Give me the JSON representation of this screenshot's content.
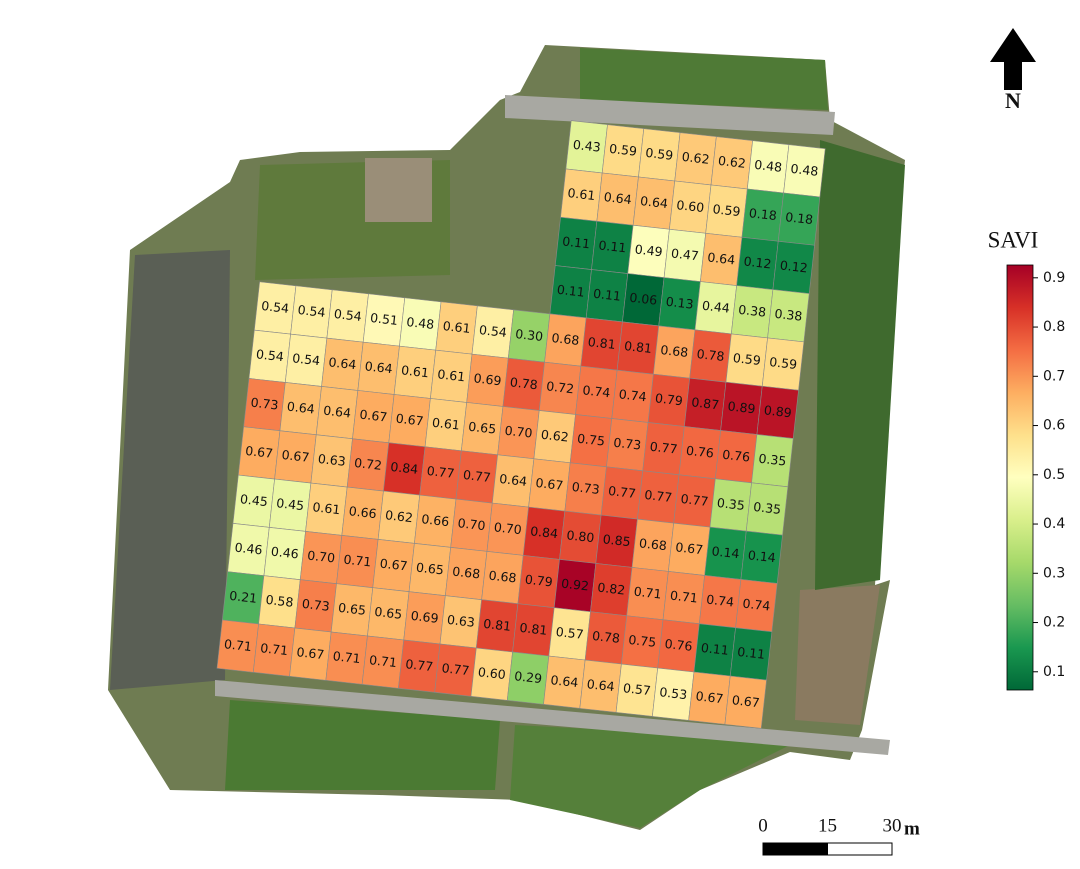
{
  "map": {
    "legend_title": "SAVI",
    "north_label": "N",
    "colormap": "RdYlGn_r",
    "clim": [
      0.063,
      0.926
    ],
    "colorbar_ticks": [
      0.1,
      0.2,
      0.3,
      0.4,
      0.5,
      0.6,
      0.7,
      0.8,
      0.9
    ],
    "scale_bar": {
      "ticks": [
        0,
        15,
        30
      ],
      "unit": "m"
    },
    "north_block": {
      "values": [
        [
          0.43,
          0.59,
          0.59,
          0.62,
          0.62,
          0.48,
          0.48
        ],
        [
          0.61,
          0.64,
          0.64,
          0.6,
          0.59,
          0.18,
          0.18
        ],
        [
          0.11,
          0.11,
          0.49,
          0.47,
          0.64,
          0.12,
          0.12
        ],
        [
          0.11,
          0.11,
          0.06,
          0.13,
          0.44,
          0.38,
          0.38
        ]
      ],
      "value_labels": [
        [
          "0.43",
          "0.59",
          "0.59",
          "0.62",
          "0.62",
          "0.48",
          "0.48"
        ],
        [
          "0.61",
          "0.64",
          "0.64",
          "0.60",
          "0.59",
          "0.18",
          "0.18"
        ],
        [
          "0.11",
          "0.11",
          "0.49",
          "0.47",
          "0.64",
          "0.12",
          "0.12"
        ],
        [
          "0.11",
          "0.11",
          "0.06",
          "0.13",
          "0.44",
          "0.38",
          "0.38"
        ]
      ]
    },
    "main_block": {
      "values": [
        [
          0.54,
          0.54,
          0.54,
          0.51,
          0.48,
          0.61,
          0.54,
          0.3,
          0.68,
          0.81,
          0.81,
          0.68,
          0.78,
          0.59,
          0.59
        ],
        [
          0.54,
          0.54,
          0.64,
          0.64,
          0.61,
          0.61,
          0.69,
          0.78,
          0.72,
          0.74,
          0.74,
          0.79,
          0.87,
          0.89,
          0.89
        ],
        [
          0.73,
          0.64,
          0.64,
          0.67,
          0.67,
          0.61,
          0.65,
          0.7,
          0.62,
          0.75,
          0.73,
          0.77,
          0.76,
          0.76,
          0.35
        ],
        [
          0.67,
          0.67,
          0.63,
          0.72,
          0.84,
          0.77,
          0.77,
          0.64,
          0.67,
          0.73,
          0.77,
          0.77,
          0.77,
          0.35,
          0.35
        ],
        [
          0.45,
          0.45,
          0.61,
          0.66,
          0.62,
          0.66,
          0.7,
          0.7,
          0.84,
          0.8,
          0.85,
          0.68,
          0.67,
          0.14,
          0.14
        ],
        [
          0.46,
          0.46,
          0.7,
          0.71,
          0.67,
          0.65,
          0.68,
          0.68,
          0.79,
          0.92,
          0.82,
          0.71,
          0.71,
          0.74,
          0.74
        ],
        [
          0.21,
          0.58,
          0.73,
          0.65,
          0.65,
          0.69,
          0.63,
          0.81,
          0.81,
          0.57,
          0.78,
          0.75,
          0.76,
          0.11,
          0.11
        ],
        [
          0.71,
          0.71,
          0.67,
          0.71,
          0.71,
          0.77,
          0.77,
          0.6,
          0.29,
          0.64,
          0.64,
          0.57,
          0.53,
          0.67,
          0.67
        ]
      ],
      "value_labels": [
        [
          "0.54",
          "0.54",
          "0.54",
          "0.51",
          "0.48",
          "0.61",
          "0.54",
          "0.30",
          "0.68",
          "0.81",
          "0.81",
          "0.68",
          "0.78",
          "0.59",
          "0.59"
        ],
        [
          "0.54",
          "0.54",
          "0.64",
          "0.64",
          "0.61",
          "0.61",
          "0.69",
          "0.78",
          "0.72",
          "0.74",
          "0.74",
          "0.79",
          "0.87",
          "0.89",
          "0.89"
        ],
        [
          "0.73",
          "0.64",
          "0.64",
          "0.67",
          "0.67",
          "0.61",
          "0.65",
          "0.70",
          "0.62",
          "0.75",
          "0.73",
          "0.77",
          "0.76",
          "0.76",
          "0.35"
        ],
        [
          "0.67",
          "0.67",
          "0.63",
          "0.72",
          "0.84",
          "0.77",
          "0.77",
          "0.64",
          "0.67",
          "0.73",
          "0.77",
          "0.77",
          "0.77",
          "0.35",
          "0.35"
        ],
        [
          "0.45",
          "0.45",
          "0.61",
          "0.66",
          "0.62",
          "0.66",
          "0.70",
          "0.70",
          "0.84",
          "0.80",
          "0.85",
          "0.68",
          "0.67",
          "0.14",
          "0.14"
        ],
        [
          "0.46",
          "0.46",
          "0.70",
          "0.71",
          "0.67",
          "0.65",
          "0.68",
          "0.68",
          "0.79",
          "0.92",
          "0.82",
          "0.71",
          "0.71",
          "0.74",
          "0.74"
        ],
        [
          "0.21",
          "0.58",
          "0.73",
          "0.65",
          "0.65",
          "0.69",
          "0.63",
          "0.81",
          "0.81",
          "0.57",
          "0.78",
          "0.75",
          "0.76",
          "0.11",
          "0.11"
        ],
        [
          "0.71",
          "0.71",
          "0.67",
          "0.71",
          "0.71",
          "0.77",
          "0.77",
          "0.60",
          "0.29",
          "0.64",
          "0.64",
          "0.57",
          "0.53",
          "0.67",
          "0.67"
        ]
      ]
    }
  }
}
